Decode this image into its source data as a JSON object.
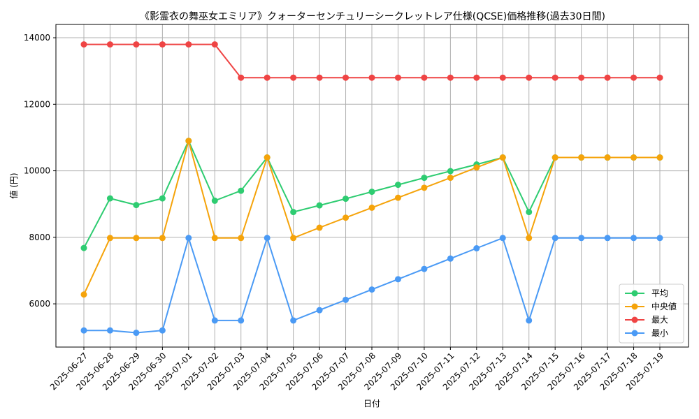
{
  "chart_data": {
    "type": "line",
    "title": "《影霊衣の舞巫女エミリア》クォーターセンチュリーシークレットレア仕様(QCSE)価格推移(過去30日間)",
    "xlabel": "日付",
    "ylabel": "値 (円)",
    "ylim": [
      4700,
      14400
    ],
    "yticks": [
      6000,
      8000,
      10000,
      12000,
      14000
    ],
    "ytick_labels": [
      "6000",
      "8000",
      "10000",
      "12000",
      "14000"
    ],
    "grid": true,
    "legend_position": "bottom-right",
    "categories": [
      "2025-06-27",
      "2025-06-28",
      "2025-06-29",
      "2025-06-30",
      "2025-07-01",
      "2025-07-02",
      "2025-07-03",
      "2025-07-04",
      "2025-07-05",
      "2025-07-06",
      "2025-07-07",
      "2025-07-08",
      "2025-07-09",
      "2025-07-10",
      "2025-07-11",
      "2025-07-12",
      "2025-07-13",
      "2025-07-14",
      "2025-07-15",
      "2025-07-16",
      "2025-07-17",
      "2025-07-18",
      "2025-07-19"
    ],
    "series": [
      {
        "name": "平均",
        "color": "#2ecc71",
        "values": [
          7680,
          9170,
          8970,
          9170,
          10900,
          9100,
          9400,
          10400,
          8760,
          8960,
          9160,
          9370,
          9580,
          9790,
          9990,
          10190,
          10400,
          8760,
          10400,
          10400,
          10400,
          10400,
          10400
        ]
      },
      {
        "name": "中央値",
        "color": "#f5a30a",
        "values": [
          6280,
          7980,
          7980,
          7980,
          10900,
          7980,
          7980,
          10400,
          7980,
          8290,
          8590,
          8890,
          9190,
          9490,
          9790,
          10100,
          10400,
          7980,
          10400,
          10400,
          10400,
          10400,
          10400
        ]
      },
      {
        "name": "最大",
        "color": "#ef4444",
        "values": [
          13800,
          13800,
          13800,
          13800,
          13800,
          13800,
          12800,
          12800,
          12800,
          12800,
          12800,
          12800,
          12800,
          12800,
          12800,
          12800,
          12800,
          12800,
          12800,
          12800,
          12800,
          12800,
          12800
        ]
      },
      {
        "name": "最小",
        "color": "#4a9af5",
        "values": [
          5200,
          5200,
          5130,
          5200,
          7980,
          5500,
          5500,
          7980,
          5500,
          5810,
          6120,
          6430,
          6740,
          7050,
          7360,
          7670,
          7980,
          5500,
          7980,
          7980,
          7980,
          7980,
          7980
        ]
      }
    ]
  }
}
